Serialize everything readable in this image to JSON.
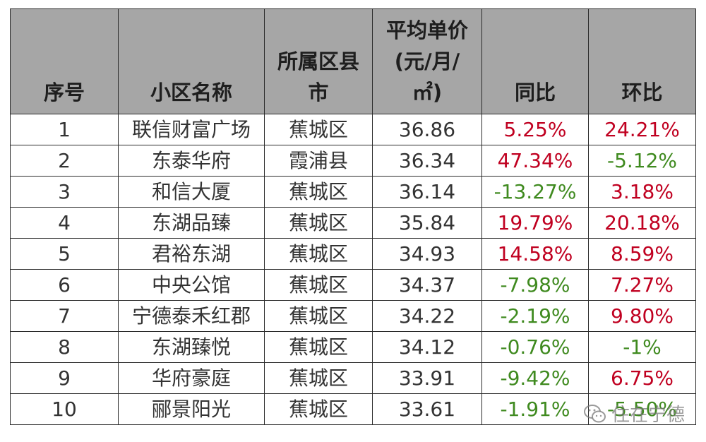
{
  "table": {
    "headers": {
      "index": "序号",
      "name": "小区名称",
      "district": [
        "所属区县",
        "市"
      ],
      "price": [
        "平均单价",
        "(元/月/",
        "㎡)"
      ],
      "yoy": "同比",
      "mom": "环比"
    },
    "rows": [
      {
        "index": "1",
        "name": "联信财富广场",
        "district": "蕉城区",
        "price": "36.86",
        "yoy": "5.25%",
        "mom": "24.21%"
      },
      {
        "index": "2",
        "name": "东泰华府",
        "district": "霞浦县",
        "price": "36.34",
        "yoy": "47.34%",
        "mom": "-5.12%"
      },
      {
        "index": "3",
        "name": "和信大厦",
        "district": "蕉城区",
        "price": "36.14",
        "yoy": "-13.27%",
        "mom": "3.18%"
      },
      {
        "index": "4",
        "name": "东湖品臻",
        "district": "蕉城区",
        "price": "35.84",
        "yoy": "19.79%",
        "mom": "20.18%"
      },
      {
        "index": "5",
        "name": "君裕东湖",
        "district": "蕉城区",
        "price": "34.93",
        "yoy": "14.58%",
        "mom": "8.59%"
      },
      {
        "index": "6",
        "name": "中央公馆",
        "district": "蕉城区",
        "price": "34.37",
        "yoy": "-7.98%",
        "mom": "7.27%"
      },
      {
        "index": "7",
        "name": "宁德泰禾红郡",
        "district": "蕉城区",
        "price": "34.22",
        "yoy": "-2.19%",
        "mom": "9.80%"
      },
      {
        "index": "8",
        "name": "东湖臻悦",
        "district": "蕉城区",
        "price": "34.12",
        "yoy": "-0.76%",
        "mom": "-1%"
      },
      {
        "index": "9",
        "name": "华府豪庭",
        "district": "蕉城区",
        "price": "33.91",
        "yoy": "-9.42%",
        "mom": "6.75%"
      },
      {
        "index": "10",
        "name": "郦景阳光",
        "district": "蕉城区",
        "price": "33.61",
        "yoy": "-1.91%",
        "mom": "-5.50%"
      }
    ]
  },
  "colors": {
    "header_bg": "#a6a6a6",
    "positive": "#c00020",
    "negative": "#3f8a1f"
  },
  "watermark": {
    "text": "住在宁德",
    "icon": "wechat-icon"
  }
}
